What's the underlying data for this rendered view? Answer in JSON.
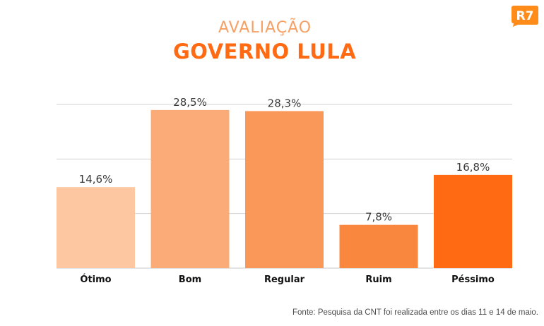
{
  "header": {
    "subtitle": "AVALIAÇÃO",
    "title": "GOVERNO LULA",
    "logo_text": "R7"
  },
  "source": "Fonte: Pesquisa da CNT foi realizada entre os dias 11 e 14 de maio.",
  "colors": {
    "accent": "#ff6a13",
    "logo": "#ff8c1a",
    "bars": [
      "#fdc7a2",
      "#fbab77",
      "#f99858",
      "#f9873e",
      "#ff6a13"
    ]
  },
  "chart_data": {
    "type": "bar",
    "categories": [
      "Ótimo",
      "Bom",
      "Regular",
      "Ruim",
      "Péssimo"
    ],
    "values": [
      14.6,
      28.5,
      28.3,
      7.8,
      16.8
    ],
    "value_labels": [
      "14,6%",
      "28,5%",
      "28,3%",
      "7,8%",
      "16,8%"
    ],
    "title": "GOVERNO LULA",
    "subtitle": "AVALIAÇÃO",
    "ylim": [
      0,
      30
    ],
    "grid": true,
    "legend": "none"
  }
}
